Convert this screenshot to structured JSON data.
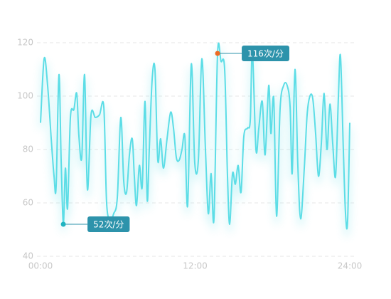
{
  "chart_data": {
    "type": "line",
    "color": "#5cdde6",
    "x": [
      0,
      0.28,
      0.55,
      0.83,
      1.05,
      1.21,
      1.43,
      1.6,
      1.77,
      1.93,
      2.1,
      2.32,
      2.59,
      2.81,
      2.98,
      3.2,
      3.42,
      3.64,
      3.92,
      4.25,
      4.58,
      4.91,
      5.13,
      5.41,
      5.68,
      5.96,
      6.23,
      6.46,
      6.68,
      6.9,
      7.12,
      7.28,
      7.45,
      7.67,
      7.89,
      8.11,
      8.28,
      8.44,
      8.66,
      8.88,
      9.1,
      9.32,
      9.54,
      9.82,
      10.1,
      10.32,
      10.54,
      10.76,
      10.98,
      11.2,
      11.42,
      11.7,
      11.97,
      12.25,
      12.52,
      12.8,
      13.02,
      13.24,
      13.46,
      13.74,
      14.01,
      14.29,
      14.51,
      14.68,
      14.9,
      15.12,
      15.34,
      15.56,
      15.78,
      16.06,
      16.28,
      16.44,
      16.72,
      16.94,
      17.21,
      17.43,
      17.71,
      17.88,
      18.1,
      18.32,
      18.59,
      18.87,
      19.14,
      19.37,
      19.53,
      19.75,
      19.97,
      20.19,
      20.47,
      20.69,
      20.91,
      21.13,
      21.35,
      21.57,
      21.79,
      22.01,
      22.23,
      22.46,
      22.68,
      22.9,
      23.12,
      23.28,
      23.5,
      23.67,
      23.83,
      24
    ],
    "values": [
      90,
      114,
      104,
      84,
      70,
      66,
      108,
      76,
      52,
      73,
      58,
      92,
      95,
      101,
      85,
      77,
      108,
      65,
      93,
      92,
      93,
      96,
      60,
      54,
      56,
      62,
      92,
      68,
      64,
      78,
      84,
      70,
      59,
      74,
      66,
      98,
      61,
      80,
      106,
      110,
      76,
      84,
      73,
      84,
      94,
      88,
      77,
      76,
      80,
      85,
      59,
      112,
      75,
      76,
      114,
      80,
      56,
      71,
      54,
      116,
      113,
      110,
      70,
      52,
      71,
      67,
      74,
      64,
      85,
      88,
      91,
      117,
      80,
      88,
      98,
      78,
      104,
      86,
      99,
      55,
      95,
      104,
      104,
      96,
      71,
      110,
      74,
      54,
      73,
      93,
      100,
      99,
      86,
      70,
      82,
      101,
      80,
      97,
      82,
      70,
      100,
      115,
      80,
      56,
      53,
      90
    ],
    "xlim": [
      0,
      24
    ],
    "xticks": [
      {
        "value": 0,
        "label": "00:00"
      },
      {
        "value": 12,
        "label": "12:00"
      },
      {
        "value": 24,
        "label": "24:00"
      }
    ],
    "ylim": [
      40,
      120
    ],
    "yticks": [
      40,
      60,
      80,
      100,
      120
    ],
    "grid": true,
    "markers": [
      {
        "x": 13.74,
        "value": 116,
        "label": "116次/分",
        "color": "#ee6a22"
      },
      {
        "x": 1.77,
        "value": 52,
        "label": "52次/分",
        "color": "#1fb3c0"
      }
    ]
  }
}
